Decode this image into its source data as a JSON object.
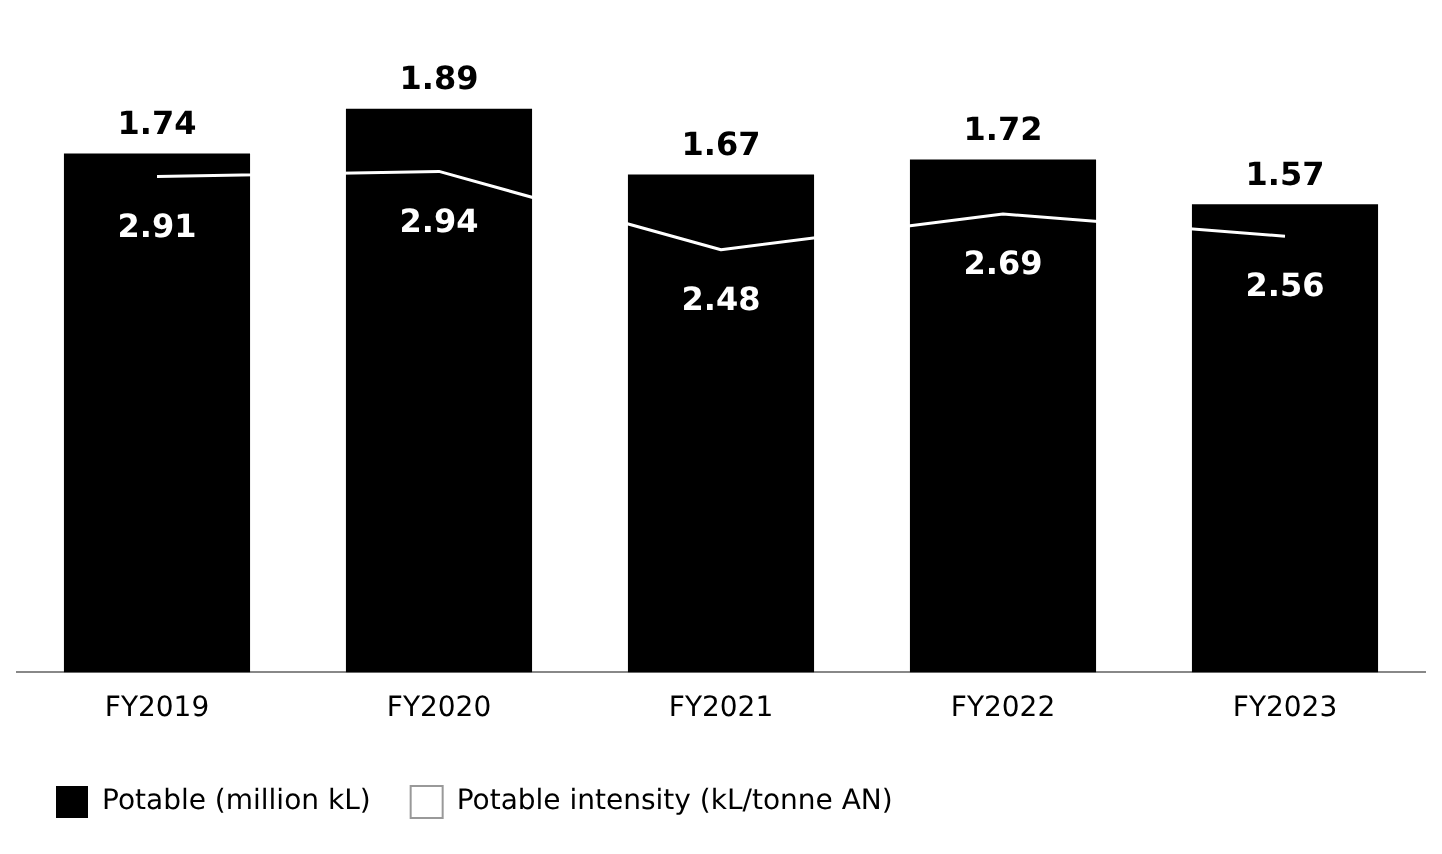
{
  "chart_data": {
    "type": "bar",
    "categories": [
      "FY2019",
      "FY2020",
      "FY2021",
      "FY2022",
      "FY2023"
    ],
    "series": [
      {
        "name": "Potable (million kL)",
        "color": "#000000",
        "values": [
          1.74,
          1.89,
          1.67,
          1.72,
          1.57
        ]
      },
      {
        "name": "Potable intensity (kL/tonne AN)",
        "type": "line",
        "axis": "y2",
        "color": "#ffffff",
        "values": [
          2.91,
          2.94,
          2.48,
          2.69,
          2.56
        ]
      }
    ],
    "tick_labels": "x",
    "data_labels": true,
    "grid": false,
    "legend": "bottom left",
    "marker": "none"
  }
}
